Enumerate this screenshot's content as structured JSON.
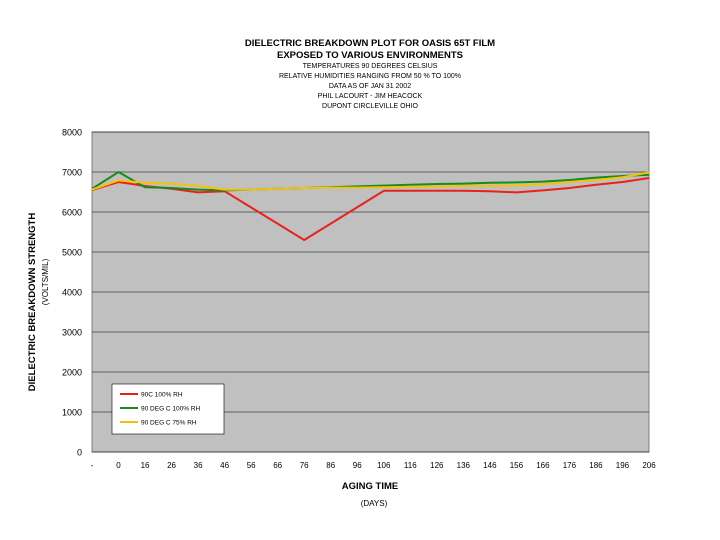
{
  "chart_data": {
    "type": "line",
    "title": "DIELECTRIC BREAKDOWN PLOT FOR OASIS 65T FILM",
    "subtitle": "EXPOSED TO VARIOUS ENVIRONMENTS",
    "notes": [
      "TEMPERATURES 90 DEGREES CELSIUS",
      "RELATIVE HUMIDITIES RANGING FROM 50 % TO 100%",
      "DATA AS OF JAN 31 2002",
      "PHIL LACOURT - JIM HEACOCK",
      "DUPONT CIRCLEVILLE OHIO"
    ],
    "xlabel": "AGING TIME",
    "xunit": "(DAYS)",
    "ylabel": "DIELECTRIC BREAKDOWN STRENGTH",
    "yunit": "(VOLTS/MIL)",
    "categories": [
      "-",
      "0",
      "16",
      "26",
      "36",
      "46",
      "56",
      "66",
      "76",
      "86",
      "96",
      "106",
      "116",
      "126",
      "136",
      "146",
      "156",
      "166",
      "176",
      "186",
      "196",
      "206"
    ],
    "ylim": [
      0,
      8000
    ],
    "yticks": [
      "0",
      "1000",
      "2000",
      "3000",
      "4000",
      "5000",
      "6000",
      "7000",
      "8000"
    ],
    "grid": true,
    "plot_bg": "#c0c0c0",
    "legend_position": "bottom-left",
    "series": [
      {
        "name": "90C 100% RH",
        "color": "#e8221a",
        "values": [
          6550,
          6750,
          6650,
          6580,
          6490,
          6520,
          null,
          null,
          5300,
          null,
          null,
          6530,
          6530,
          6530,
          6530,
          6520,
          6490,
          6540,
          6600,
          6680,
          6750,
          6850
        ]
      },
      {
        "name": "90 DEG C 100% RH",
        "color": "#158c1c",
        "values": [
          6580,
          7000,
          6620,
          6600,
          6560,
          6540,
          6560,
          6580,
          6600,
          6620,
          6640,
          6660,
          6680,
          6700,
          6710,
          6730,
          6740,
          6760,
          6800,
          6860,
          6900,
          6930
        ]
      },
      {
        "name": "90 DEG C 75% RH",
        "color": "#f5c20b",
        "values": [
          6560,
          6790,
          6730,
          6710,
          6650,
          6560,
          6560,
          6580,
          6600,
          6610,
          6610,
          6620,
          6630,
          6640,
          6650,
          6650,
          6660,
          6700,
          6750,
          6800,
          6870,
          6990
        ]
      }
    ]
  }
}
